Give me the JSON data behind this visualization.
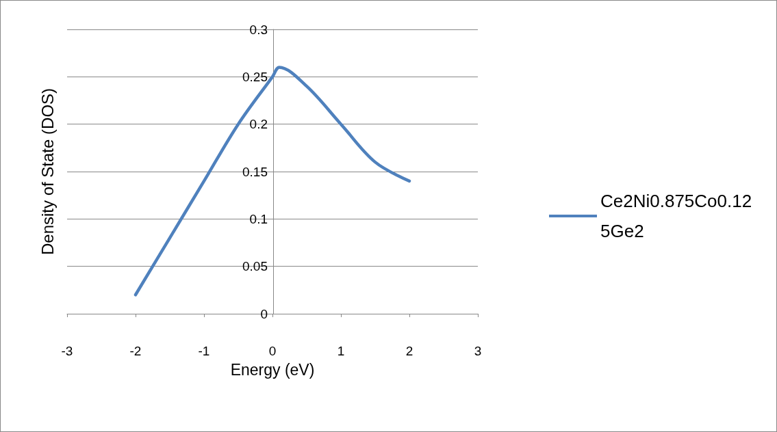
{
  "chart_data": {
    "type": "line",
    "xlabel": "Energy (eV)",
    "ylabel": "Density of State (DOS)",
    "x": [
      -2,
      -1.5,
      -1,
      -0.5,
      0,
      0.1,
      0.5,
      1,
      1.5,
      2
    ],
    "series": [
      {
        "name": "Ce2Ni0.875Co0.125Ge2",
        "color": "#4f81bd",
        "values": [
          0.02,
          0.08,
          0.14,
          0.2,
          0.25,
          0.26,
          0.24,
          0.2,
          0.16,
          0.14
        ]
      }
    ],
    "xlim": [
      -3,
      3
    ],
    "xticks": [
      -3,
      -2,
      -1,
      0,
      1,
      2,
      3
    ],
    "ylim": [
      0,
      0.3
    ],
    "yticks": [
      0,
      0.05,
      0.1,
      0.15,
      0.2,
      0.25,
      0.3
    ],
    "grid": "y",
    "legend": "right",
    "marker": "none",
    "line_style": "solid"
  }
}
